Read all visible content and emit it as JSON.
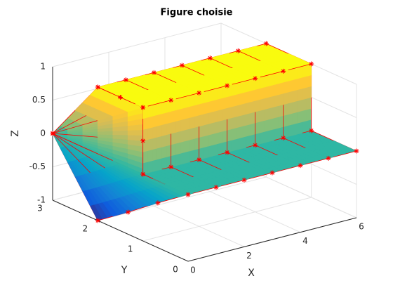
{
  "chart_data": {
    "type": "surface",
    "title": "Figure choisie",
    "xlabel": "X",
    "ylabel": "Y",
    "zlabel": "Z",
    "xlim": [
      0,
      6
    ],
    "ylim": [
      0,
      3
    ],
    "zlim": [
      -1,
      1
    ],
    "xticks": [
      0,
      2,
      4,
      6
    ],
    "yticks": [
      0,
      1,
      2,
      3
    ],
    "zticks": [
      -1,
      -0.5,
      0,
      0.5,
      1
    ],
    "grid": true,
    "edge_color": "#ff0000",
    "marker_color": "#ff0000",
    "colormap": [
      "#352a87",
      "#0f5cdd",
      "#1481d6",
      "#06a4ca",
      "#2eb7a4",
      "#87bf77",
      "#d1bb59",
      "#fec832",
      "#f9fb0e"
    ],
    "surfaces": [
      {
        "x": [
          [
            0,
            1,
            2,
            3,
            4,
            5,
            6
          ],
          [
            0,
            1,
            2,
            3,
            4,
            5,
            6
          ],
          [
            0,
            1,
            2,
            3,
            4,
            5,
            6
          ],
          [
            0,
            1,
            2,
            3,
            4,
            5,
            6
          ]
        ],
        "y": [
          [
            2,
            2,
            2,
            2,
            2,
            2,
            2
          ],
          [
            1,
            1,
            1,
            1,
            1,
            1,
            1
          ],
          [
            1,
            1,
            1,
            1,
            1,
            1,
            1
          ],
          [
            0,
            0,
            0,
            0,
            0,
            0,
            0
          ]
        ],
        "z": [
          [
            1,
            1,
            1,
            1,
            1,
            1,
            1
          ],
          [
            1,
            1,
            1,
            1,
            1,
            1,
            1
          ],
          [
            0,
            0,
            0,
            0,
            0,
            0,
            0
          ],
          [
            0,
            0,
            0,
            0,
            0,
            0,
            0
          ]
        ]
      },
      {
        "x": [
          [
            0,
            0,
            0,
            0,
            0,
            0,
            0,
            0,
            0
          ],
          [
            0,
            0,
            0,
            0,
            0,
            0,
            0,
            0,
            0
          ]
        ],
        "y": [
          [
            3,
            3,
            3,
            3,
            3,
            3,
            3,
            3,
            3
          ],
          [
            2,
            1.5,
            1,
            1,
            1,
            0,
            0.67,
            1.33,
            2
          ]
        ],
        "z": [
          [
            0,
            0,
            0,
            0,
            0,
            0,
            0,
            0,
            0
          ],
          [
            1,
            1,
            1,
            0.5,
            0,
            0,
            -0.33,
            -0.67,
            -1
          ]
        ]
      }
    ]
  }
}
